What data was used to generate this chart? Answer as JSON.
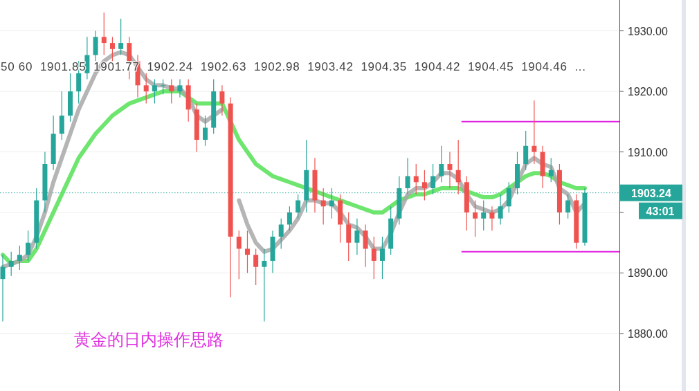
{
  "chart_data": {
    "type": "candlestick",
    "categories": [
      null,
      null,
      null,
      null,
      null,
      null,
      null,
      null,
      null,
      null,
      null,
      null,
      null,
      null,
      null,
      null,
      null,
      null,
      null,
      null,
      null,
      null,
      null,
      null,
      null,
      null,
      null,
      null,
      null,
      null,
      null,
      null,
      null,
      null,
      null,
      null,
      null,
      null,
      null,
      null,
      null,
      null,
      null,
      null,
      null,
      null,
      null,
      null,
      null,
      null,
      null,
      null,
      null,
      null,
      null,
      null,
      null,
      null,
      null,
      null,
      null,
      null,
      null,
      null,
      null,
      null,
      null,
      null,
      null,
      null
    ],
    "ohlc": [
      [
        1889,
        1893,
        1882,
        1891
      ],
      [
        1891,
        1893.5,
        1889.5,
        1892
      ],
      [
        1892,
        1894.5,
        1890.5,
        1893
      ],
      [
        1893,
        1897,
        1892,
        1895
      ],
      [
        1895,
        1904,
        1894,
        1902
      ],
      [
        1902,
        1910,
        1900,
        1908
      ],
      [
        1908,
        1916,
        1907,
        1913
      ],
      [
        1913,
        1920,
        1912,
        1916
      ],
      [
        1916,
        1923,
        1915,
        1920
      ],
      [
        1920,
        1925,
        1918,
        1923
      ],
      [
        1923,
        1929,
        1922,
        1926
      ],
      [
        1926,
        1930,
        1925,
        1929
      ],
      [
        1929,
        1933,
        1926,
        1928
      ],
      [
        1928,
        1929,
        1925,
        1927
      ],
      [
        1927,
        1932,
        1926,
        1928
      ],
      [
        1928,
        1929,
        1922,
        1925
      ],
      [
        1925,
        1926,
        1919,
        1921
      ],
      [
        1921,
        1923,
        1918,
        1920
      ],
      [
        1920,
        1922,
        1918,
        1921
      ],
      [
        1921,
        1922,
        1919.5,
        1921
      ],
      [
        1921,
        1922,
        1918,
        1920
      ],
      [
        1920,
        1922,
        1919,
        1921
      ],
      [
        1921,
        1922,
        1915,
        1917
      ],
      [
        1917,
        1918,
        1910,
        1912
      ],
      [
        1912,
        1916,
        1911,
        1914
      ],
      [
        1914,
        1922,
        1913,
        1920
      ],
      [
        1920,
        1921,
        1916,
        1918
      ],
      [
        1918,
        1919,
        1886,
        1896
      ],
      [
        1896,
        1897,
        1889,
        1894
      ],
      [
        1894,
        1897,
        1890,
        1893
      ],
      [
        1893,
        1894,
        1888,
        1891
      ],
      [
        1891,
        1894,
        1882,
        1892
      ],
      [
        1892,
        1897,
        1890,
        1896
      ],
      [
        1896,
        1899,
        1894,
        1898
      ],
      [
        1898,
        1901,
        1897,
        1900
      ],
      [
        1900,
        1903,
        1899,
        1902
      ],
      [
        1902,
        1912,
        1900,
        1907
      ],
      [
        1907,
        1909,
        1900,
        1902
      ],
      [
        1902,
        1904,
        1898,
        1901
      ],
      [
        1901,
        1904,
        1899,
        1902
      ],
      [
        1902,
        1903,
        1895,
        1898
      ],
      [
        1898,
        1900,
        1892,
        1895
      ],
      [
        1895,
        1899,
        1893,
        1897
      ],
      [
        1897,
        1898,
        1891,
        1894
      ],
      [
        1894,
        1896,
        1889,
        1892
      ],
      [
        1892,
        1896,
        1889,
        1894
      ],
      [
        1894,
        1901,
        1893,
        1899
      ],
      [
        1899,
        1906,
        1898,
        1904
      ],
      [
        1904,
        1909,
        1903,
        1906
      ],
      [
        1906,
        1908,
        1903,
        1905
      ],
      [
        1905,
        1907,
        1902,
        1904
      ],
      [
        1904,
        1908,
        1903,
        1906
      ],
      [
        1906,
        1911,
        1905,
        1908
      ],
      [
        1908,
        1910,
        1904,
        1907
      ],
      [
        1907,
        1912,
        1903,
        1905
      ],
      [
        1905,
        1906,
        1897,
        1900
      ],
      [
        1900,
        1902,
        1896,
        1899
      ],
      [
        1899,
        1902,
        1897,
        1900
      ],
      [
        1900,
        1901,
        1897,
        1899
      ],
      [
        1899,
        1903,
        1898,
        1901
      ],
      [
        1901,
        1905,
        1900,
        1904
      ],
      [
        1904,
        1910,
        1903,
        1908
      ],
      [
        1908,
        1913.5,
        1907,
        1911
      ],
      [
        1911,
        1918.5,
        1908,
        1910
      ],
      [
        1910,
        1911,
        1904,
        1906
      ],
      [
        1906,
        1909,
        1905,
        1907
      ],
      [
        1907,
        1908,
        1898,
        1900
      ],
      [
        1900,
        1903,
        1899,
        1902
      ],
      [
        1902,
        1903,
        1894,
        1895
      ],
      [
        1895,
        1904,
        1894.5,
        1903.24
      ]
    ],
    "colors": [
      "#26a69a",
      "#26a69a",
      "#26a69a",
      "#26a69a",
      "#26a69a",
      "#26a69a",
      "#26a69a",
      "#26a69a",
      "#26a69a",
      "#26a69a",
      "#26a69a",
      "#26a69a",
      "#ef5350",
      "#ef5350",
      "#26a69a",
      "#ef5350",
      "#ef5350",
      "#ef5350",
      "#26a69a",
      "#26a69a",
      "#ef5350",
      "#26a69a",
      "#ef5350",
      "#ef5350",
      "#26a69a",
      "#26a69a",
      "#ef5350",
      "#ef5350",
      "#ef5350",
      "#ef5350",
      "#ef5350",
      "#26a69a",
      "#26a69a",
      "#26a69a",
      "#26a69a",
      "#26a69a",
      "#26a69a",
      "#ef5350",
      "#ef5350",
      "#26a69a",
      "#ef5350",
      "#ef5350",
      "#26a69a",
      "#ef5350",
      "#ef5350",
      "#26a69a",
      "#26a69a",
      "#26a69a",
      "#26a69a",
      "#ef5350",
      "#ef5350",
      "#26a69a",
      "#26a69a",
      "#ef5350",
      "#ef5350",
      "#ef5350",
      "#ef5350",
      "#26a69a",
      "#ef5350",
      "#26a69a",
      "#26a69a",
      "#26a69a",
      "#26a69a",
      "#ef5350",
      "#ef5350",
      "#26a69a",
      "#ef5350",
      "#26a69a",
      "#ef5350",
      "#26a69a"
    ],
    "series": [
      {
        "type": "line",
        "color": "#55e055",
        "values": [
          1893,
          1891.5,
          1892,
          1892,
          1894,
          1897,
          1900,
          1903,
          1906,
          1909,
          1911,
          1913,
          1914.5,
          1916,
          1917,
          1918,
          1918.5,
          1919,
          1919.5,
          1920,
          1920,
          1920,
          1919,
          1918,
          1918,
          1918,
          1918,
          1915,
          1912,
          1910,
          1908,
          1907,
          1906,
          1905.5,
          1905,
          1904.5,
          1904,
          1903.5,
          1903,
          1902.5,
          1902,
          1901.5,
          1901,
          1900.5,
          1900,
          1900,
          1901,
          1902,
          1902.5,
          1903,
          1903,
          1903.5,
          1904,
          1904,
          1904,
          1903.5,
          1903,
          1902.5,
          1902.5,
          1903,
          1904,
          1905,
          1906,
          1906.5,
          1906.5,
          1906,
          1905,
          1904.5,
          1904,
          1904
        ]
      },
      {
        "type": "line",
        "color": "#a8a8a8",
        "values": [
          1891,
          1891.5,
          1892,
          1893,
          1896,
          1900,
          1905,
          1909,
          1913,
          1917,
          1920,
          1923,
          1925,
          1926,
          1926.5,
          1926,
          1924,
          1922,
          1921,
          1921,
          1920.5,
          1920.5,
          1919,
          1916,
          1915,
          1916,
          1917,
          null,
          1902,
          1898,
          1895,
          1893.5,
          1894,
          1895.5,
          1897,
          1899,
          1902,
          1902,
          1901.5,
          1901.5,
          1900,
          1898,
          1897.5,
          1896,
          1894,
          1894,
          1896.5,
          1900,
          1903,
          1904,
          1904,
          1905,
          1906.5,
          1906.5,
          1905.5,
          1903,
          1901,
          1900.5,
          1900,
          1900.5,
          1902,
          1905,
          1908,
          1909,
          1908,
          1907.5,
          1904,
          1903,
          1900,
          1901.5
        ]
      }
    ],
    "ylim": [
      1870.5,
      1935.1
    ],
    "yticks": [
      {
        "value": 1880,
        "label": "1880.00"
      },
      {
        "value": 1890,
        "label": "1890.00"
      },
      {
        "value": 1900,
        "label": null
      },
      {
        "value": 1910,
        "label": "1910.00"
      },
      {
        "value": 1920,
        "label": "1920.00"
      },
      {
        "value": 1930,
        "label": "1930.00"
      }
    ],
    "ref_lines": [
      {
        "axis": "y",
        "value": 1903.24,
        "label": "1903.24",
        "color": "#26a69a",
        "line_style": "dotted"
      },
      {
        "axis": "y",
        "value": 1915,
        "color": "#e020e0"
      },
      {
        "axis": "y",
        "value": 1893.5,
        "color": "#e020e0"
      }
    ],
    "annotations": [
      "50 60  1901.85  1901.77  1902.24  1902.63  1902.98  1903.42  1904.35  1904.42  1904.45  1904.46  ...",
      "43:01",
      "黄金的日内操作思路"
    ],
    "grid": "y"
  }
}
